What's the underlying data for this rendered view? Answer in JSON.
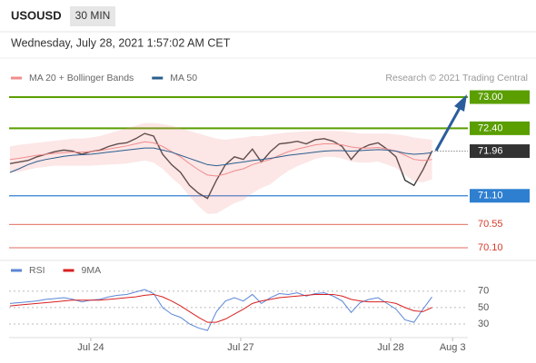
{
  "header": {
    "symbol": "USOUSD",
    "interval": "30 MIN",
    "datetime": "Wednesday, July 28, 2021 1:57:02 AM CET",
    "copyright": "Research © 2021 Trading Central"
  },
  "chart_data": [
    {
      "type": "line",
      "xlim": [
        -0.1,
        51
      ],
      "ylim": [
        69.89,
        73.21
      ],
      "series": [
        {
          "color": "#3a3a3a",
          "values": [
            71.72,
            71.75,
            71.78,
            71.85,
            71.9,
            71.95,
            71.98,
            71.96,
            71.9,
            71.95,
            71.98,
            72.05,
            72.1,
            72.12,
            72.2,
            72.3,
            72.25,
            71.9,
            71.7,
            71.55,
            71.3,
            71.15,
            71.05,
            71.4,
            71.7,
            71.85,
            71.8,
            72.0,
            71.75,
            71.95,
            72.1,
            72.12,
            72.15,
            72.1,
            72.18,
            72.2,
            72.15,
            72.05,
            71.8,
            72.0,
            72.08,
            72.12,
            72.0,
            71.85,
            71.4,
            71.3,
            71.6,
            71.96
          ]
        },
        {
          "name": "MA 20 + Bollinger Bands",
          "color": "#f08c8c",
          "band": true,
          "values": [
            71.8,
            71.82,
            71.85,
            71.88,
            71.9,
            71.92,
            71.93,
            71.94,
            71.94,
            71.95,
            71.97,
            72.0,
            72.03,
            72.06,
            72.1,
            72.14,
            72.12,
            72.05,
            71.95,
            71.85,
            71.72,
            71.6,
            71.5,
            71.48,
            71.52,
            71.58,
            71.62,
            71.7,
            71.75,
            71.8,
            71.88,
            71.95,
            72.0,
            72.04,
            72.08,
            72.1,
            72.1,
            72.08,
            72.04,
            72.02,
            72.02,
            72.03,
            72.0,
            71.96,
            71.88,
            71.8,
            71.78,
            71.8
          ],
          "upper": [
            72.05,
            72.08,
            72.1,
            72.12,
            72.14,
            72.16,
            72.18,
            72.2,
            72.2,
            72.22,
            72.25,
            72.3,
            72.35,
            72.4,
            72.45,
            72.5,
            72.5,
            72.48,
            72.45,
            72.4,
            72.35,
            72.3,
            72.25,
            72.2,
            72.18,
            72.2,
            72.22,
            72.25,
            72.25,
            72.28,
            72.3,
            72.32,
            72.33,
            72.34,
            72.35,
            72.35,
            72.35,
            72.34,
            72.32,
            72.3,
            72.3,
            72.3,
            72.3,
            72.28,
            72.26,
            72.22,
            72.2,
            72.18
          ],
          "lower": [
            71.55,
            71.56,
            71.6,
            71.64,
            71.66,
            71.68,
            71.68,
            71.68,
            71.68,
            71.68,
            71.69,
            71.7,
            71.71,
            71.72,
            71.75,
            71.78,
            71.74,
            71.62,
            71.45,
            71.3,
            71.09,
            70.9,
            70.75,
            70.76,
            70.86,
            70.96,
            71.02,
            71.15,
            71.25,
            71.32,
            71.46,
            71.58,
            71.67,
            71.74,
            71.81,
            71.85,
            71.85,
            71.82,
            71.76,
            71.74,
            71.74,
            71.76,
            71.7,
            71.64,
            71.5,
            71.38,
            71.36,
            71.42
          ]
        },
        {
          "name": "MA 50",
          "color": "#2b5d8c",
          "values": [
            71.55,
            71.62,
            71.7,
            71.76,
            71.8,
            71.83,
            71.86,
            71.88,
            71.89,
            71.9,
            71.92,
            71.94,
            71.96,
            71.98,
            72.0,
            72.02,
            72.02,
            71.98,
            71.94,
            71.88,
            71.82,
            71.76,
            71.7,
            71.68,
            71.7,
            71.73,
            71.75,
            71.78,
            71.8,
            71.82,
            71.85,
            71.88,
            71.9,
            71.92,
            71.94,
            71.96,
            71.97,
            71.97,
            71.96,
            71.97,
            71.98,
            71.99,
            71.98,
            71.96,
            71.92,
            71.9,
            71.91,
            71.93
          ]
        }
      ],
      "levels": [
        {
          "value": 73,
          "label": "73.00",
          "color": "#5a9e00",
          "style": "box"
        },
        {
          "value": 72.4,
          "label": "72.40",
          "color": "#5a9e00",
          "style": "box"
        },
        {
          "value": 71.96,
          "label": "71.96",
          "color": "#333333",
          "style": "last"
        },
        {
          "value": 71.1,
          "label": "71.10",
          "color": "#2f7fd0",
          "style": "box"
        },
        {
          "value": 70.55,
          "label": "70.55",
          "color": "#d83a2a",
          "style": "text"
        },
        {
          "value": 70.1,
          "label": "70.10",
          "color": "#d83a2a",
          "style": "text"
        }
      ]
    },
    {
      "type": "line",
      "xlim": [
        -0.1,
        51
      ],
      "ylim": [
        10,
        82
      ],
      "yticks": [
        30,
        50,
        70
      ],
      "xticks": [
        {
          "value": 9,
          "label": "Jul 24"
        },
        {
          "value": 25.7,
          "label": "Jul 27"
        },
        {
          "value": 42.4,
          "label": "Jul 28"
        },
        {
          "value": 49.3,
          "label": "Aug 3"
        }
      ],
      "series": [
        {
          "name": "RSI",
          "color": "#5b86d6",
          "values": [
            55,
            56,
            57,
            58,
            60,
            61,
            62,
            60,
            57,
            59,
            60,
            63,
            65,
            66,
            69,
            72,
            67,
            50,
            42,
            38,
            30,
            25,
            22,
            45,
            58,
            62,
            58,
            66,
            55,
            62,
            67,
            66,
            68,
            64,
            67,
            68,
            64,
            58,
            44,
            56,
            60,
            62,
            55,
            48,
            35,
            32,
            48,
            63
          ]
        },
        {
          "name": "9MA",
          "color": "#d82020",
          "values": [
            52,
            53,
            54,
            55,
            56,
            57,
            58,
            59,
            59,
            59,
            59,
            60,
            61,
            62,
            63,
            65,
            66,
            63,
            58,
            52,
            45,
            38,
            32,
            32,
            36,
            42,
            48,
            55,
            58,
            60,
            62,
            63,
            64,
            65,
            66,
            66,
            66,
            64,
            60,
            58,
            57,
            57,
            57,
            55,
            50,
            46,
            45,
            50
          ]
        }
      ]
    }
  ]
}
